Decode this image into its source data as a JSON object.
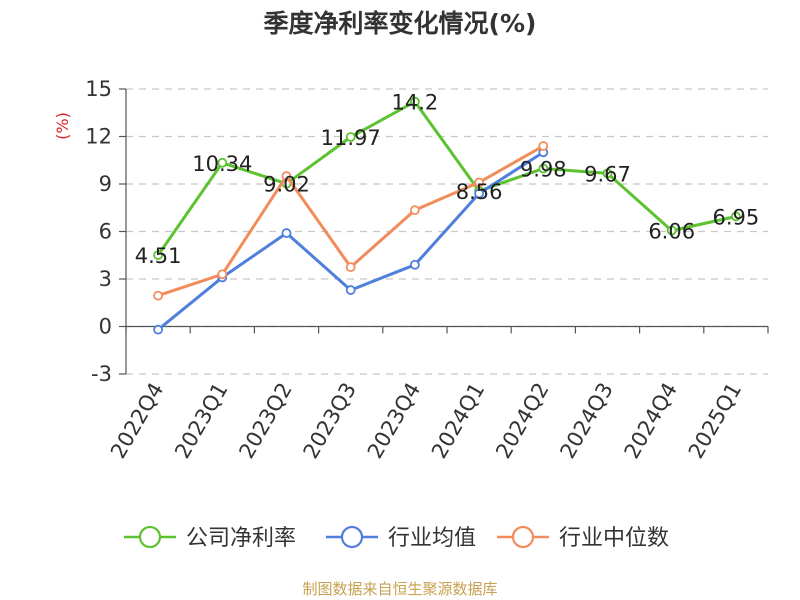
{
  "chart_data": {
    "type": "line",
    "title": "季度净利率变化情况(%)",
    "ylabel": "(%)",
    "categories": [
      "2022Q4",
      "2023Q1",
      "2023Q2",
      "2023Q3",
      "2023Q4",
      "2024Q1",
      "2024Q2",
      "2024Q3",
      "2024Q4",
      "2025Q1"
    ],
    "ylim": [
      -3,
      15
    ],
    "yticks": [
      15,
      12,
      9,
      6,
      3,
      0,
      -3
    ],
    "grid": true,
    "legend_position": "bottom",
    "series": [
      {
        "name": "公司净利率",
        "color": "#5cc22f",
        "values": [
          4.51,
          10.34,
          9.02,
          11.97,
          14.2,
          8.56,
          9.98,
          9.67,
          6.06,
          6.95
        ],
        "labels": [
          "4.51",
          "10.34",
          "9.02",
          "11.97",
          "14.2",
          "8.56",
          "9.98",
          "9.67",
          "6.06",
          "6.95"
        ]
      },
      {
        "name": "行业均值",
        "color": "#4f7fdc",
        "values": [
          -0.2,
          3.1,
          5.9,
          2.3,
          3.9,
          8.4,
          11.0,
          null,
          null,
          null
        ]
      },
      {
        "name": "行业中位数",
        "color": "#f28c5a",
        "values": [
          1.95,
          3.3,
          9.5,
          3.75,
          7.35,
          9.1,
          11.4,
          null,
          null,
          null
        ]
      }
    ]
  },
  "source_text": "制图数据来自恒生聚源数据库"
}
